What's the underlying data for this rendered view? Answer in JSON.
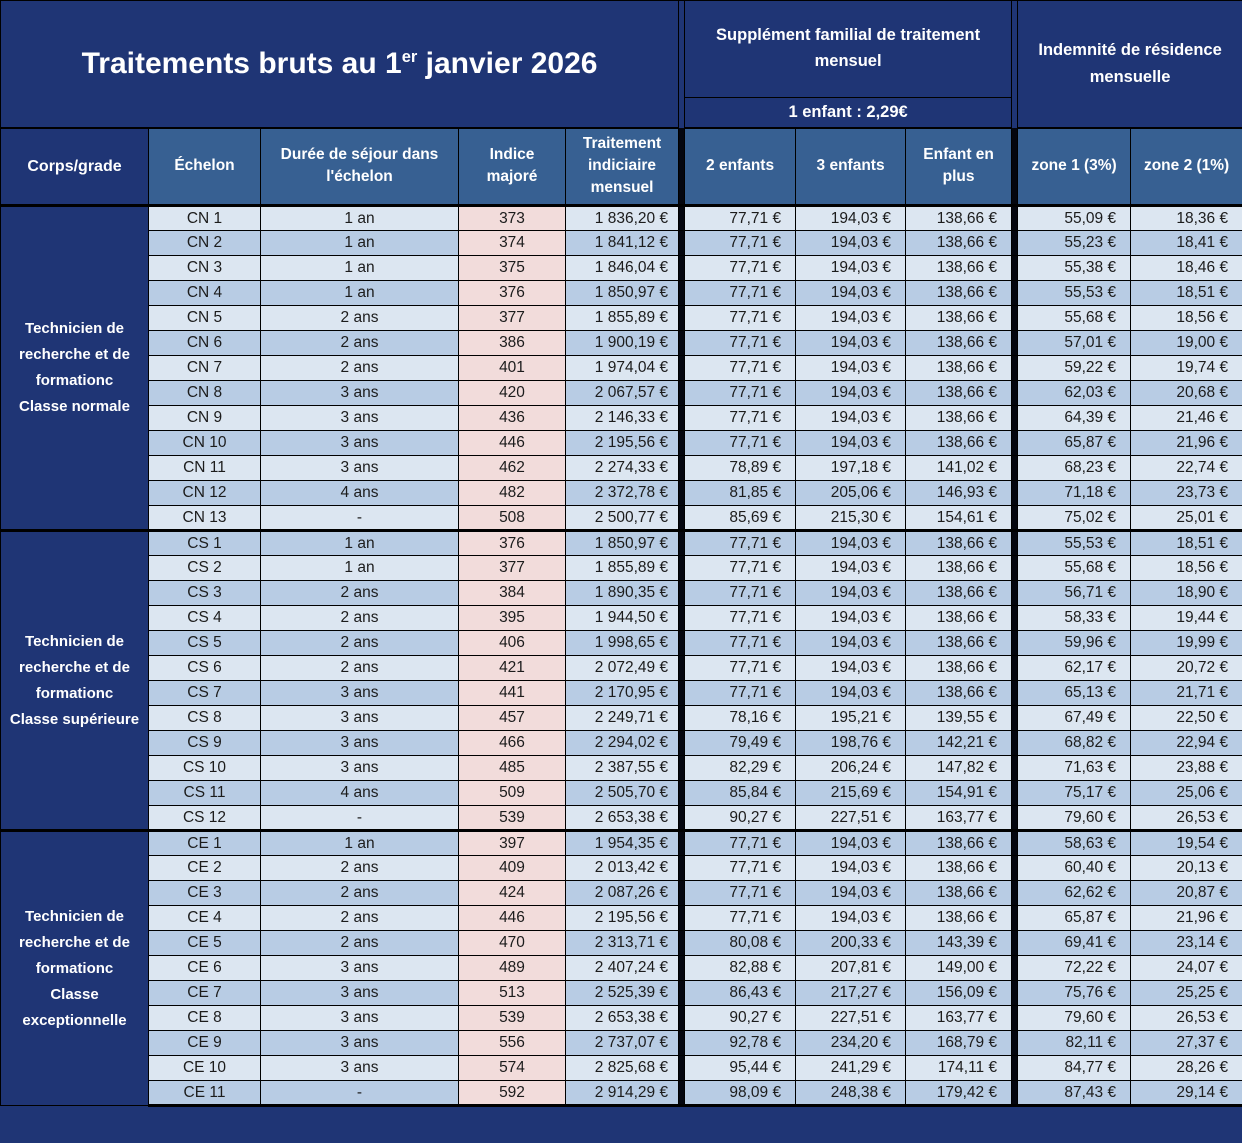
{
  "title": {
    "prefix": "Traitements bruts au 1",
    "sup": "er",
    "suffix": " janvier 2026"
  },
  "header_groups": {
    "supplement_title": "Supplément familial de traitement mensuel",
    "supplement_subnote": "1 enfant : 2,29€",
    "indemnite_title": "Indemnité de résidence mensuelle"
  },
  "columns": [
    "Corps/grade",
    "Échelon",
    "Durée de séjour dans l'échelon",
    "Indice majoré",
    "Traitement indiciaire mensuel",
    "2 enfants",
    "3 enfants",
    "Enfant en plus",
    "zone 1 (3%)",
    "zone 2 (1%)"
  ],
  "groups": [
    {
      "corps": "Technicien de recherche et de formationc",
      "classe": "Classe normale",
      "rows": [
        [
          "CN 1",
          "1 an",
          "373",
          "1 836,20 €",
          "77,71 €",
          "194,03 €",
          "138,66 €",
          "55,09 €",
          "18,36 €"
        ],
        [
          "CN 2",
          "1 an",
          "374",
          "1 841,12 €",
          "77,71 €",
          "194,03 €",
          "138,66 €",
          "55,23 €",
          "18,41 €"
        ],
        [
          "CN 3",
          "1 an",
          "375",
          "1 846,04 €",
          "77,71 €",
          "194,03 €",
          "138,66 €",
          "55,38 €",
          "18,46 €"
        ],
        [
          "CN 4",
          "1 an",
          "376",
          "1 850,97 €",
          "77,71 €",
          "194,03 €",
          "138,66 €",
          "55,53 €",
          "18,51 €"
        ],
        [
          "CN 5",
          "2 ans",
          "377",
          "1 855,89 €",
          "77,71 €",
          "194,03 €",
          "138,66 €",
          "55,68 €",
          "18,56 €"
        ],
        [
          "CN 6",
          "2 ans",
          "386",
          "1 900,19 €",
          "77,71 €",
          "194,03 €",
          "138,66 €",
          "57,01 €",
          "19,00 €"
        ],
        [
          "CN 7",
          "2 ans",
          "401",
          "1 974,04 €",
          "77,71 €",
          "194,03 €",
          "138,66 €",
          "59,22 €",
          "19,74 €"
        ],
        [
          "CN 8",
          "3 ans",
          "420",
          "2 067,57 €",
          "77,71 €",
          "194,03 €",
          "138,66 €",
          "62,03 €",
          "20,68 €"
        ],
        [
          "CN 9",
          "3 ans",
          "436",
          "2 146,33 €",
          "77,71 €",
          "194,03 €",
          "138,66 €",
          "64,39 €",
          "21,46 €"
        ],
        [
          "CN 10",
          "3 ans",
          "446",
          "2 195,56 €",
          "77,71 €",
          "194,03 €",
          "138,66 €",
          "65,87 €",
          "21,96 €"
        ],
        [
          "CN 11",
          "3 ans",
          "462",
          "2 274,33 €",
          "78,89 €",
          "197,18 €",
          "141,02 €",
          "68,23 €",
          "22,74 €"
        ],
        [
          "CN 12",
          "4 ans",
          "482",
          "2 372,78 €",
          "81,85 €",
          "205,06 €",
          "146,93 €",
          "71,18 €",
          "23,73 €"
        ],
        [
          "CN 13",
          "-",
          "508",
          "2 500,77 €",
          "85,69 €",
          "215,30 €",
          "154,61 €",
          "75,02 €",
          "25,01 €"
        ]
      ]
    },
    {
      "corps": "Technicien de recherche et de formationc",
      "classe": "Classe supérieure",
      "rows": [
        [
          "CS 1",
          "1 an",
          "376",
          "1 850,97 €",
          "77,71 €",
          "194,03 €",
          "138,66 €",
          "55,53 €",
          "18,51 €"
        ],
        [
          "CS 2",
          "1 an",
          "377",
          "1 855,89 €",
          "77,71 €",
          "194,03 €",
          "138,66 €",
          "55,68 €",
          "18,56 €"
        ],
        [
          "CS 3",
          "2 ans",
          "384",
          "1 890,35 €",
          "77,71 €",
          "194,03 €",
          "138,66 €",
          "56,71 €",
          "18,90 €"
        ],
        [
          "CS 4",
          "2 ans",
          "395",
          "1 944,50 €",
          "77,71 €",
          "194,03 €",
          "138,66 €",
          "58,33 €",
          "19,44 €"
        ],
        [
          "CS 5",
          "2 ans",
          "406",
          "1 998,65 €",
          "77,71 €",
          "194,03 €",
          "138,66 €",
          "59,96 €",
          "19,99 €"
        ],
        [
          "CS 6",
          "2 ans",
          "421",
          "2 072,49 €",
          "77,71 €",
          "194,03 €",
          "138,66 €",
          "62,17 €",
          "20,72 €"
        ],
        [
          "CS 7",
          "3 ans",
          "441",
          "2 170,95 €",
          "77,71 €",
          "194,03 €",
          "138,66 €",
          "65,13 €",
          "21,71 €"
        ],
        [
          "CS 8",
          "3 ans",
          "457",
          "2 249,71 €",
          "78,16 €",
          "195,21 €",
          "139,55 €",
          "67,49 €",
          "22,50 €"
        ],
        [
          "CS 9",
          "3 ans",
          "466",
          "2 294,02 €",
          "79,49 €",
          "198,76 €",
          "142,21 €",
          "68,82 €",
          "22,94 €"
        ],
        [
          "CS 10",
          "3 ans",
          "485",
          "2 387,55 €",
          "82,29 €",
          "206,24 €",
          "147,82 €",
          "71,63 €",
          "23,88 €"
        ],
        [
          "CS 11",
          "4 ans",
          "509",
          "2 505,70 €",
          "85,84 €",
          "215,69 €",
          "154,91 €",
          "75,17 €",
          "25,06 €"
        ],
        [
          "CS 12",
          "-",
          "539",
          "2 653,38 €",
          "90,27 €",
          "227,51 €",
          "163,77 €",
          "79,60 €",
          "26,53 €"
        ]
      ]
    },
    {
      "corps": "Technicien de recherche et de formationc",
      "classe": "Classe exceptionnelle",
      "rows": [
        [
          "CE 1",
          "1 an",
          "397",
          "1 954,35 €",
          "77,71 €",
          "194,03 €",
          "138,66 €",
          "58,63 €",
          "19,54 €"
        ],
        [
          "CE 2",
          "2 ans",
          "409",
          "2 013,42 €",
          "77,71 €",
          "194,03 €",
          "138,66 €",
          "60,40 €",
          "20,13 €"
        ],
        [
          "CE 3",
          "2 ans",
          "424",
          "2 087,26 €",
          "77,71 €",
          "194,03 €",
          "138,66 €",
          "62,62 €",
          "20,87 €"
        ],
        [
          "CE 4",
          "2 ans",
          "446",
          "2 195,56 €",
          "77,71 €",
          "194,03 €",
          "138,66 €",
          "65,87 €",
          "21,96 €"
        ],
        [
          "CE 5",
          "2 ans",
          "470",
          "2 313,71 €",
          "80,08 €",
          "200,33 €",
          "143,39 €",
          "69,41 €",
          "23,14 €"
        ],
        [
          "CE 6",
          "3 ans",
          "489",
          "2 407,24 €",
          "82,88 €",
          "207,81 €",
          "149,00 €",
          "72,22 €",
          "24,07 €"
        ],
        [
          "CE 7",
          "3 ans",
          "513",
          "2 525,39 €",
          "86,43 €",
          "217,27 €",
          "156,09 €",
          "75,76 €",
          "25,25 €"
        ],
        [
          "CE 8",
          "3 ans",
          "539",
          "2 653,38 €",
          "90,27 €",
          "227,51 €",
          "163,77 €",
          "79,60 €",
          "26,53 €"
        ],
        [
          "CE 9",
          "3 ans",
          "556",
          "2 737,07 €",
          "92,78 €",
          "234,20 €",
          "168,79 €",
          "82,11 €",
          "27,37 €"
        ],
        [
          "CE 10",
          "3 ans",
          "574",
          "2 825,68 €",
          "95,44 €",
          "241,29 €",
          "174,11 €",
          "84,77 €",
          "28,26 €"
        ],
        [
          "CE 11",
          "-",
          "592",
          "2 914,29 €",
          "98,09 €",
          "248,38 €",
          "179,42 €",
          "87,43 €",
          "29,14 €"
        ]
      ]
    }
  ],
  "colors": {
    "navy": "#1F3575",
    "steel": "#376092",
    "rowLight": "#DCE6F1",
    "rowDark": "#B8CCE4",
    "indice": "#F2DCDB",
    "line": "#000000",
    "textDark": "#1C1C1C",
    "textWhite": "#FFFFFF"
  }
}
